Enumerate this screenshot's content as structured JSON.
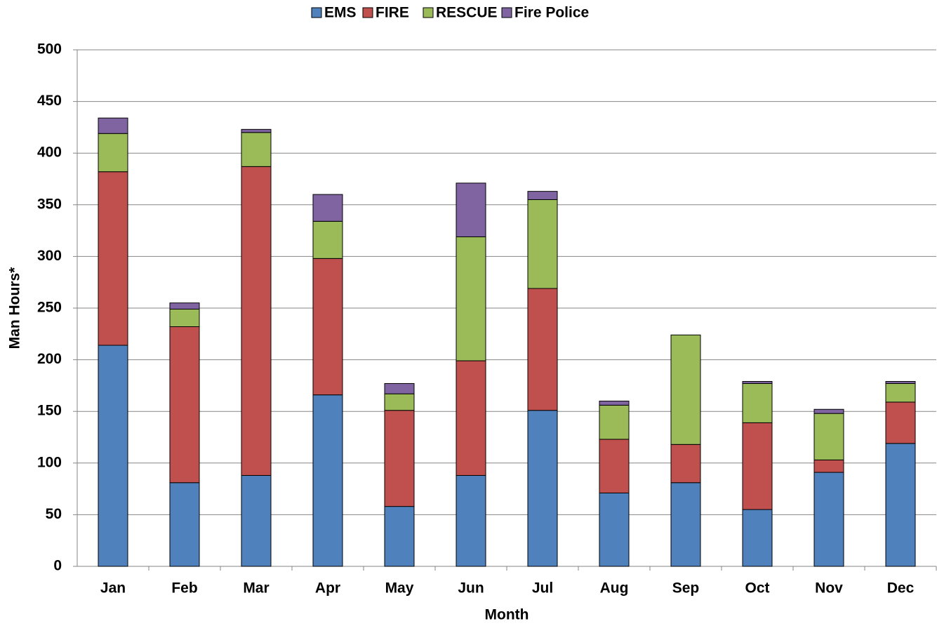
{
  "chart_data": {
    "type": "stacked_bar",
    "x_label": "Month",
    "y_label": "Man Hours*",
    "categories": [
      "Jan",
      "Feb",
      "Mar",
      "Apr",
      "May",
      "Jun",
      "Jul",
      "Aug",
      "Sep",
      "Oct",
      "Nov",
      "Dec"
    ],
    "series": [
      {
        "name": "EMS",
        "color": "#4f81bd",
        "values": [
          214,
          81,
          88,
          166,
          58,
          88,
          151,
          71,
          81,
          55,
          91,
          119
        ]
      },
      {
        "name": "FIRE",
        "color": "#c0504d",
        "values": [
          168,
          151,
          299,
          132,
          93,
          111,
          118,
          52,
          37,
          84,
          12,
          40
        ]
      },
      {
        "name": "RESCUE",
        "color": "#9bbb59",
        "values": [
          37,
          17,
          33,
          36,
          16,
          120,
          86,
          33,
          106,
          38,
          45,
          18
        ]
      },
      {
        "name": "Fire Police",
        "color": "#8064a2",
        "values": [
          15,
          6,
          3,
          26,
          10,
          52,
          8,
          4,
          0,
          2,
          4,
          2
        ]
      }
    ],
    "ylim": [
      0,
      500
    ],
    "yticks": [
      0,
      50,
      100,
      150,
      200,
      250,
      300,
      350,
      400,
      450,
      500
    ],
    "grid": true,
    "legend": "top"
  }
}
